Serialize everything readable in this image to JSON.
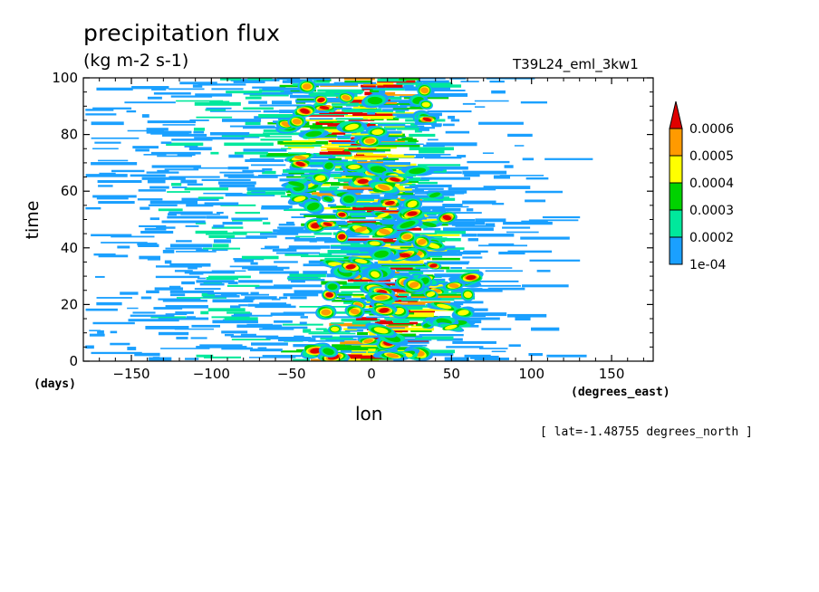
{
  "chart_data": {
    "type": "heatmap",
    "title": "precipitation flux",
    "units": "(kg m-2 s-1)",
    "run_label": "T39L24_eml_3kw1",
    "xlabel": "lon",
    "ylabel": "time",
    "x_unit_label": "(degrees_east)",
    "y_unit_label": "(days)",
    "annotation": "[ lat=-1.48755 degrees_north ]",
    "xlim": [
      -180,
      176
    ],
    "ylim": [
      0,
      100
    ],
    "x_ticks": [
      -150,
      -100,
      -50,
      0,
      50,
      100,
      150
    ],
    "x_tick_labels": [
      "−150",
      "−100",
      "−50",
      "0",
      "50",
      "100",
      "150"
    ],
    "y_ticks": [
      0,
      20,
      40,
      60,
      80,
      100
    ],
    "y_tick_labels": [
      "0",
      "20",
      "40",
      "60",
      "80",
      "100"
    ],
    "colorbar": {
      "levels": [
        "1e-04",
        "0.0002",
        "0.0003",
        "0.0004",
        "0.0005",
        "0.0006"
      ],
      "colors": [
        "#1aa0ff",
        "#00e89c",
        "#00d200",
        "#ffff00",
        "#ff9a00",
        "#e00000"
      ],
      "extend": "max"
    },
    "region_summary": [
      {
        "lon_range": [
          -180,
          -40
        ],
        "time_range": [
          0,
          100
        ],
        "level": "1e-04",
        "note": "scattered streaks"
      },
      {
        "lon_range": [
          -40,
          60
        ],
        "time_range": [
          0,
          100
        ],
        "level": "0.0006",
        "note": "dense band of convective maxima"
      },
      {
        "lon_range": [
          60,
          100
        ],
        "time_range": [
          0,
          100
        ],
        "level": "1e-04",
        "note": "sparse streaks"
      },
      {
        "lon_range": [
          100,
          176
        ],
        "time_range": [
          0,
          100
        ],
        "level": "none",
        "note": "mostly empty"
      }
    ]
  }
}
